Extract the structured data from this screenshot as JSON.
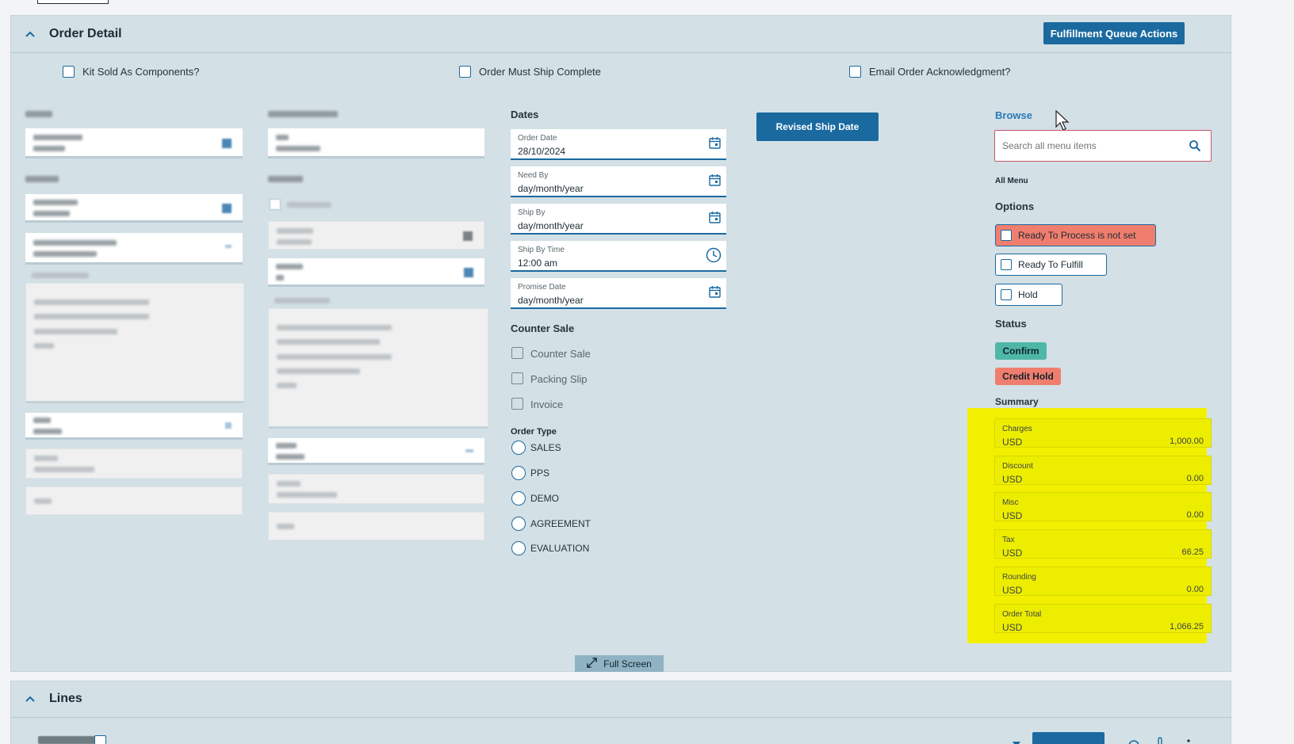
{
  "order_detail": {
    "title": "Order Detail",
    "queue_button": "Fulfillment Queue Actions",
    "checkboxes": {
      "kit_sold": "Kit Sold As Components?",
      "ship_complete": "Order Must Ship Complete",
      "email_ack": "Email Order Acknowledgment?"
    }
  },
  "dates": {
    "title": "Dates",
    "order_date": {
      "label": "Order Date",
      "value": "28/10/2024"
    },
    "need_by": {
      "label": "Need By",
      "value": "day/month/year"
    },
    "ship_by": {
      "label": "Ship By",
      "value": "day/month/year"
    },
    "ship_by_time": {
      "label": "Ship By Time",
      "value": "12:00 am"
    },
    "promise_date": {
      "label": "Promise Date",
      "value": "day/month/year"
    }
  },
  "revised_ship_button": "Revised Ship Date",
  "counter_sale": {
    "title": "Counter Sale",
    "items": [
      "Counter Sale",
      "Packing Slip",
      "Invoice"
    ]
  },
  "order_type": {
    "title": "Order Type",
    "options": [
      "SALES",
      "PPS",
      "DEMO",
      "AGREEMENT",
      "EVALUATION"
    ]
  },
  "browse": {
    "title": "Browse",
    "search_placeholder": "Search all menu items",
    "all_menu": "All Menu"
  },
  "options": {
    "title": "Options",
    "ready_to_process": "Ready To Process is not set",
    "ready_to_fulfill": "Ready To Fulfill",
    "hold": "Hold"
  },
  "status": {
    "title": "Status",
    "confirm": "Confirm",
    "credit_hold": "Credit Hold"
  },
  "summary": {
    "title": "Summary",
    "rows": [
      {
        "label": "Charges",
        "currency": "USD",
        "amount": "1,000.00"
      },
      {
        "label": "Discount",
        "currency": "USD",
        "amount": "0.00"
      },
      {
        "label": "Misc",
        "currency": "USD",
        "amount": "0.00"
      },
      {
        "label": "Tax",
        "currency": "USD",
        "amount": "66.25"
      },
      {
        "label": "Rounding",
        "currency": "USD",
        "amount": "0.00"
      },
      {
        "label": "Order Total",
        "currency": "USD",
        "amount": "1,066.25"
      }
    ]
  },
  "full_screen": "Full Screen",
  "lines": {
    "title": "Lines"
  },
  "colors": {
    "accent": "#1a6aa0",
    "panel": "#d3e0e5",
    "alert": "#f07e6e",
    "confirm": "#4fb7a8",
    "highlight": "#f2f000"
  }
}
